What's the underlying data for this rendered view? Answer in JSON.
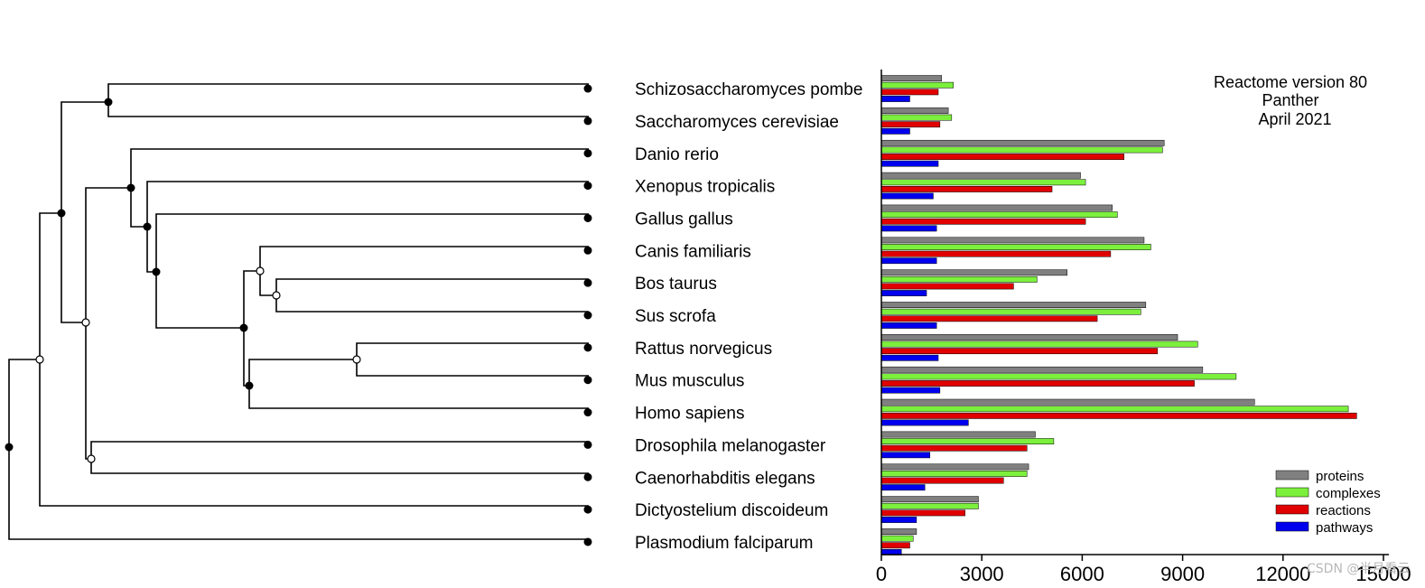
{
  "chart_data": {
    "type": "bar",
    "orientation": "horizontal",
    "categories": [
      "Schizosaccharomyces pombe",
      "Saccharomyces cerevisiae",
      "Danio rerio",
      "Xenopus tropicalis",
      "Gallus gallus",
      "Canis familiaris",
      "Bos taurus",
      "Sus scrofa",
      "Rattus norvegicus",
      "Mus musculus",
      "Homo sapiens",
      "Drosophila melanogaster",
      "Caenorhabditis elegans",
      "Dictyostelium discoideum",
      "Plasmodium falciparum"
    ],
    "series": [
      {
        "name": "proteins",
        "color": "#808080",
        "values": [
          1800,
          2000,
          8450,
          5950,
          6900,
          7850,
          5550,
          7900,
          8850,
          9600,
          11150,
          4600,
          4400,
          2900,
          1050
        ]
      },
      {
        "name": "complexes",
        "color": "#7cf03c",
        "values": [
          2150,
          2100,
          8400,
          6100,
          7050,
          8050,
          4650,
          7750,
          9450,
          10600,
          13950,
          5150,
          4350,
          2900,
          950
        ]
      },
      {
        "name": "reactions",
        "color": "#e00000",
        "values": [
          1700,
          1750,
          7250,
          5100,
          6100,
          6850,
          3950,
          6450,
          8250,
          9350,
          14200,
          4350,
          3650,
          2500,
          850
        ]
      },
      {
        "name": "pathways",
        "color": "#0000ee",
        "values": [
          850,
          850,
          1700,
          1550,
          1650,
          1650,
          1350,
          1650,
          1700,
          1750,
          2600,
          1450,
          1300,
          1050,
          600
        ]
      }
    ],
    "xlim": [
      0,
      15000
    ],
    "xticks": [
      "0",
      "3000",
      "6000",
      "9000",
      "12000",
      "15000"
    ],
    "grid": false,
    "legend_position": "bottom-right",
    "annotation": [
      "Reactome version 80",
      "Panther",
      "April 2021"
    ]
  },
  "watermark": "CSDN @半月看云"
}
